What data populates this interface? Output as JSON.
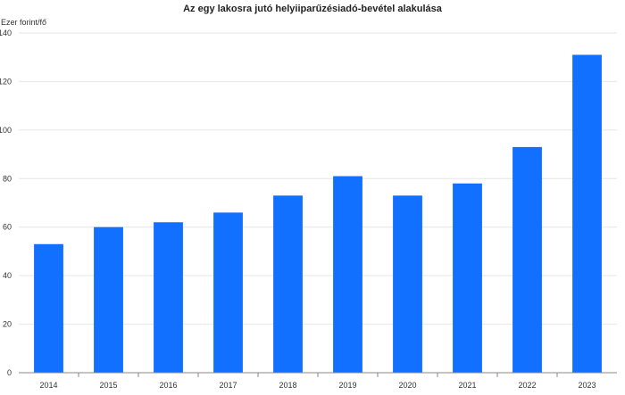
{
  "chart_data": {
    "type": "bar",
    "title": "Az egy lakosra jutó helyiiparűzésiadó-bevétel alakulása",
    "ylabel": "Ezer forint/fő",
    "xlabel": "",
    "categories": [
      "2014",
      "2015",
      "2016",
      "2017",
      "2018",
      "2019",
      "2020",
      "2021",
      "2022",
      "2023"
    ],
    "values": [
      53,
      60,
      62,
      66,
      73,
      81,
      73,
      78,
      93,
      131
    ],
    "ylim": [
      0,
      140
    ],
    "yticks": [
      0,
      20,
      40,
      60,
      80,
      100,
      120,
      140
    ],
    "grid": true,
    "legend": "none",
    "colors": {
      "bar": "#1170FF",
      "grid": "#e6e6e6",
      "axis": "#888888",
      "text": "#333333",
      "title": "#222222"
    }
  }
}
